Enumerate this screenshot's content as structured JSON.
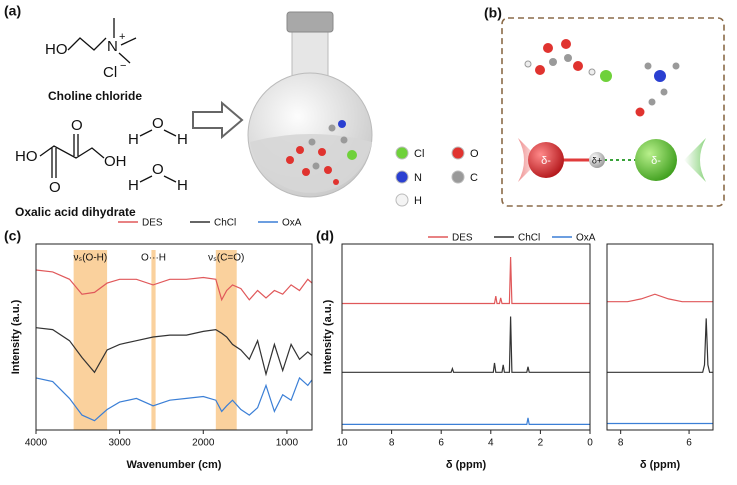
{
  "panel_a": {
    "label": "(a)",
    "choline": {
      "ho": "HO",
      "n": "N",
      "charge": "+",
      "cl": "Cl",
      "anion": "−",
      "name": "Choline chloride"
    },
    "oxalic": {
      "ho": "HO",
      "oh": "OH",
      "o_top": "O",
      "o_bottom": "O",
      "name": "Oxalic acid dihydrate"
    },
    "water": [
      {
        "h1": "H",
        "o": "O",
        "h2": "H"
      },
      {
        "h1": "H",
        "o": "O",
        "h2": "H"
      }
    ],
    "atom_legend": [
      {
        "symbol": "Cl",
        "color": "#6fd13a"
      },
      {
        "symbol": "O",
        "color": "#e0332f"
      },
      {
        "symbol": "N",
        "color": "#2a3fd1"
      },
      {
        "symbol": "C",
        "color": "#9a9a9a"
      },
      {
        "symbol": "H",
        "color": "#f4f4f4"
      }
    ]
  },
  "panel_b": {
    "label": "(b)",
    "charges": [
      "δ-",
      "δ+",
      "δ-"
    ]
  },
  "chart_data": [
    {
      "type": "line",
      "label": "(c)",
      "xlabel": "Wavenumber (cm)",
      "ylabel": "Intensity (a.u.)",
      "xlim": [
        4000,
        700
      ],
      "xticks": [
        4000,
        3000,
        2000,
        1000
      ],
      "ylim": [
        0,
        10
      ],
      "x": [
        4000,
        3800,
        3600,
        3450,
        3300,
        3150,
        3000,
        2800,
        2600,
        2400,
        2200,
        2000,
        1850,
        1780,
        1720,
        1650,
        1550,
        1450,
        1350,
        1250,
        1150,
        1050,
        950,
        850,
        750,
        700
      ],
      "annotations": [
        {
          "text": "νₛ(O-H)",
          "range": [
            3550,
            3150
          ]
        },
        {
          "text": "O···H",
          "range": [
            2620,
            2570
          ]
        },
        {
          "text": "νₛ(C=O)",
          "range": [
            1850,
            1600
          ]
        }
      ],
      "band_color": "#f9c98c",
      "series": [
        {
          "name": "DES",
          "color": "#e0585a",
          "values": [
            8.6,
            8.5,
            8.1,
            7.3,
            7.4,
            7.9,
            8.1,
            8.1,
            7.8,
            8.1,
            8.1,
            8.2,
            8.1,
            7.0,
            7.5,
            7.8,
            7.6,
            7.0,
            7.5,
            7.1,
            7.5,
            7.3,
            7.8,
            7.5,
            8.1,
            7.9
          ]
        },
        {
          "name": "ChCl",
          "color": "#333333",
          "values": [
            5.5,
            5.4,
            4.8,
            3.9,
            3.1,
            4.3,
            4.6,
            4.8,
            5.0,
            5.1,
            5.1,
            5.3,
            5.4,
            5.2,
            5.0,
            4.6,
            4.3,
            3.8,
            4.8,
            3.0,
            4.6,
            3.2,
            4.6,
            3.8,
            4.2,
            4.0
          ]
        },
        {
          "name": "OxA",
          "color": "#3b7fd6",
          "values": [
            2.8,
            2.6,
            1.7,
            0.8,
            0.5,
            1.1,
            1.5,
            1.7,
            1.3,
            1.6,
            1.7,
            1.8,
            1.6,
            1.0,
            1.3,
            1.6,
            1.1,
            0.8,
            1.2,
            2.4,
            1.0,
            1.9,
            1.6,
            2.8,
            2.4,
            2.7
          ]
        }
      ]
    },
    {
      "type": "line",
      "label": "(d)",
      "xlabel": "δ (ppm)",
      "ylabel": "Intensity (a.u.)",
      "xlim": [
        10,
        0
      ],
      "xticks": [
        10,
        8,
        6,
        4,
        2,
        0
      ],
      "ylim": [
        0,
        10
      ],
      "series": [
        {
          "name": "DES",
          "color": "#e0585a",
          "x": [
            10,
            4.0,
            3.85,
            3.8,
            3.75,
            3.65,
            3.6,
            3.55,
            3.3,
            3.25,
            3.2,
            3.15,
            3.1,
            2.6,
            0
          ],
          "values": [
            6.8,
            6.8,
            6.8,
            7.2,
            6.8,
            6.8,
            7.1,
            6.8,
            6.8,
            6.8,
            9.3,
            6.8,
            6.8,
            6.8,
            6.8
          ]
        },
        {
          "name": "ChCl",
          "color": "#333333",
          "x": [
            10,
            5.6,
            5.55,
            5.5,
            4.0,
            3.9,
            3.85,
            3.8,
            3.55,
            3.5,
            3.45,
            3.3,
            3.25,
            3.2,
            3.15,
            3.1,
            2.55,
            2.5,
            2.45,
            0
          ],
          "values": [
            3.1,
            3.1,
            3.3,
            3.1,
            3.1,
            3.1,
            3.6,
            3.1,
            3.1,
            3.5,
            3.1,
            3.1,
            3.1,
            6.1,
            3.1,
            3.1,
            3.1,
            3.4,
            3.1,
            3.1
          ]
        },
        {
          "name": "OxA",
          "color": "#3b7fd6",
          "x": [
            10,
            2.55,
            2.5,
            2.45,
            0
          ],
          "values": [
            0.3,
            0.3,
            0.65,
            0.3,
            0.3
          ]
        }
      ]
    },
    {
      "type": "line",
      "xlabel": "δ (ppm)",
      "xlim": [
        8.4,
        5.3
      ],
      "xticks": [
        8,
        6
      ],
      "ylim": [
        0,
        10
      ],
      "series": [
        {
          "color": "#e0585a",
          "x": [
            8.4,
            7.8,
            7.4,
            7.0,
            6.6,
            6.2,
            5.3
          ],
          "values": [
            6.9,
            6.9,
            7.05,
            7.3,
            7.05,
            6.9,
            6.9
          ]
        },
        {
          "color": "#333333",
          "x": [
            8.4,
            5.6,
            5.55,
            5.5,
            5.45,
            5.4,
            5.3
          ],
          "values": [
            3.1,
            3.1,
            3.5,
            6.0,
            3.5,
            3.1,
            3.1
          ]
        },
        {
          "color": "#3b7fd6",
          "x": [
            8.4,
            5.3
          ],
          "values": [
            0.35,
            0.35
          ]
        }
      ]
    }
  ]
}
